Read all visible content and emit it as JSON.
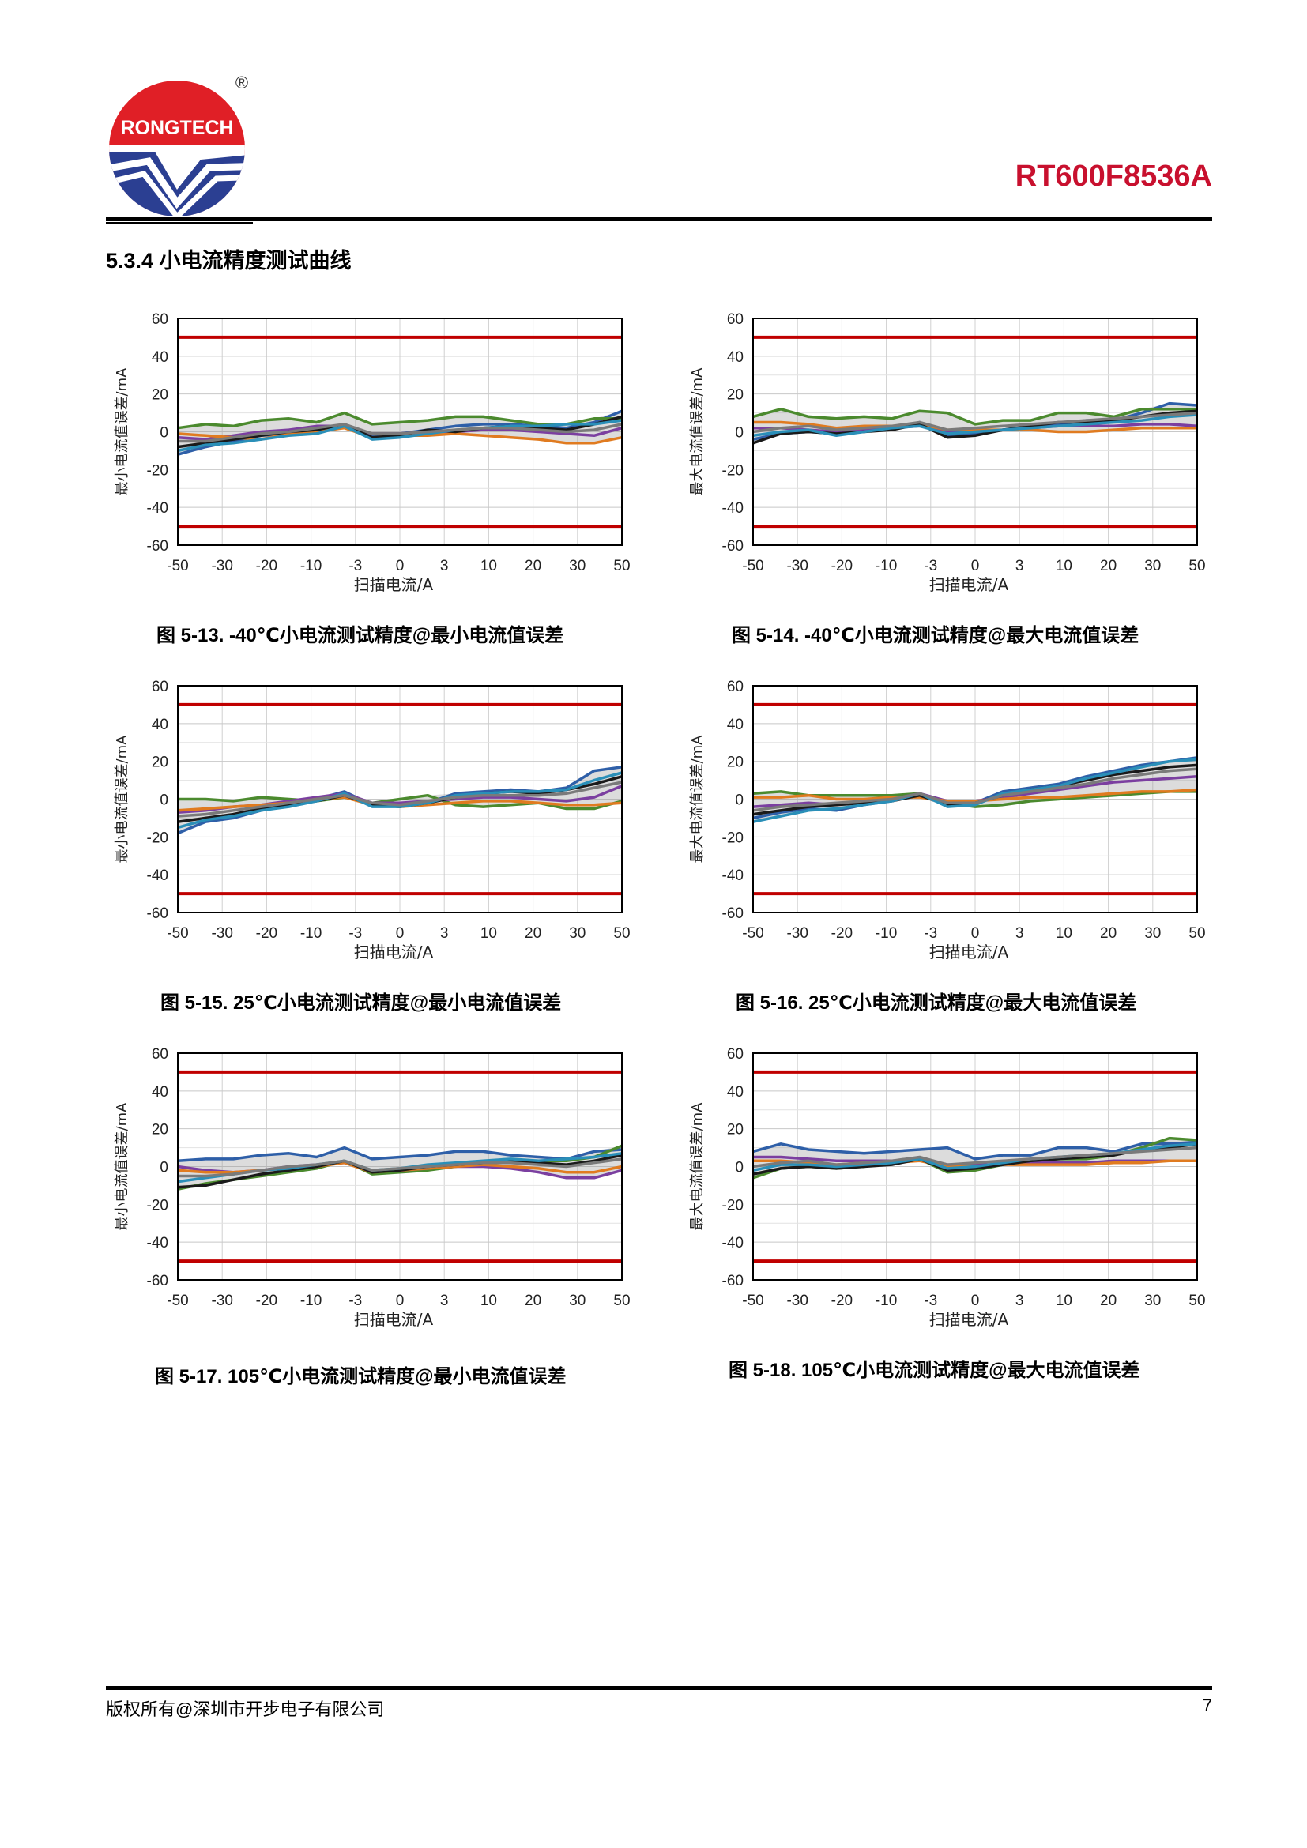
{
  "header": {
    "logo_text": "RONGTECH",
    "logo_mark": "®",
    "doc_title": "RT600F8536A"
  },
  "section": {
    "title": "5.3.4  小电流精度测试曲线"
  },
  "colors": {
    "limit": "#c00000",
    "series": [
      "#2e5fa8",
      "#4b8a2e",
      "#7b3fa0",
      "#e07b20",
      "#1a1a1a",
      "#2a8fb8",
      "#7a7a7a"
    ]
  },
  "chart_data": [
    {
      "type": "line",
      "ylabel": "最小电流值误差/mA",
      "xlabel": "扫描电流/A",
      "x_ticks": [
        "-50",
        "-30",
        "-20",
        "-10",
        "-3",
        "0",
        "3",
        "10",
        "20",
        "30",
        "50"
      ],
      "y_ticks": [
        "60",
        "40",
        "20",
        "0",
        "-20",
        "-40",
        "-60"
      ],
      "ylim": [
        -60,
        60
      ],
      "limit_lines": [
        50,
        -50
      ],
      "series": [
        {
          "values": [
            -12,
            -8,
            -5,
            -2,
            -1,
            0,
            3,
            -2,
            -1,
            1,
            3,
            4,
            4,
            3,
            2,
            5,
            11
          ]
        },
        {
          "values": [
            2,
            4,
            5,
            3,
            6,
            6,
            7,
            5,
            10,
            9,
            4,
            5,
            6,
            7,
            8,
            8,
            5,
            6,
            4,
            4,
            6,
            7,
            7
          ]
        },
        {
          "values": [
            -3,
            -4,
            -2,
            0,
            1,
            3,
            3,
            -1,
            -1,
            0,
            0,
            1,
            1,
            0,
            -1,
            -2,
            2
          ]
        },
        {
          "values": [
            -1,
            -2,
            -3,
            -4,
            -1,
            0,
            2,
            -3,
            -2,
            -2,
            -1,
            -2,
            -3,
            -4,
            -6,
            -6,
            -3
          ]
        },
        {
          "values": [
            -8,
            -6,
            -4,
            -2,
            0,
            1,
            4,
            -3,
            -2,
            1,
            0,
            2,
            3,
            2,
            1,
            4,
            8
          ]
        },
        {
          "values": [
            -10,
            -7,
            -6,
            -4,
            -2,
            -1,
            3,
            -4,
            -3,
            -1,
            1,
            2,
            3,
            3,
            4,
            4,
            6
          ]
        },
        {
          "values": [
            -5,
            -5,
            -3,
            -1,
            0,
            2,
            4,
            -1,
            -1,
            0,
            1,
            2,
            2,
            1,
            0,
            1,
            4
          ]
        }
      ]
    },
    {
      "type": "line",
      "ylabel": "最大电流值误差/mA",
      "xlabel": "扫描电流/A",
      "x_ticks": [
        "-50",
        "-30",
        "-20",
        "-10",
        "-3",
        "0",
        "3",
        "10",
        "20",
        "30",
        "50"
      ],
      "y_ticks": [
        "60",
        "40",
        "20",
        "0",
        "-20",
        "-40",
        "-60"
      ],
      "ylim": [
        -60,
        60
      ],
      "limit_lines": [
        50,
        -50
      ],
      "series": [
        {
          "values": [
            -4,
            -1,
            0,
            -1,
            0,
            2,
            5,
            -2,
            -1,
            1,
            3,
            4,
            6,
            6,
            10,
            15,
            14
          ]
        },
        {
          "values": [
            8,
            12,
            8,
            7,
            8,
            7,
            11,
            10,
            4,
            6,
            6,
            10,
            10,
            8,
            12,
            12,
            12
          ]
        },
        {
          "values": [
            2,
            2,
            1,
            0,
            1,
            2,
            3,
            0,
            0,
            1,
            2,
            3,
            3,
            3,
            4,
            4,
            3
          ]
        },
        {
          "values": [
            5,
            5,
            4,
            2,
            3,
            3,
            4,
            1,
            1,
            1,
            1,
            0,
            0,
            1,
            2,
            2,
            2
          ]
        },
        {
          "values": [
            -6,
            -1,
            0,
            -1,
            0,
            1,
            4,
            -3,
            -2,
            1,
            3,
            5,
            5,
            6,
            8,
            10,
            11
          ]
        },
        {
          "values": [
            -2,
            0,
            1,
            -2,
            0,
            2,
            3,
            -1,
            0,
            1,
            2,
            3,
            4,
            5,
            6,
            8,
            9
          ]
        },
        {
          "values": [
            0,
            2,
            3,
            1,
            2,
            3,
            5,
            1,
            2,
            3,
            4,
            5,
            6,
            7,
            8,
            9,
            10
          ]
        }
      ]
    },
    {
      "type": "line",
      "ylabel": "最小电流值误差/mA",
      "xlabel": "扫描电流/A",
      "x_ticks": [
        "-50",
        "-30",
        "-20",
        "-10",
        "-3",
        "0",
        "3",
        "10",
        "20",
        "30",
        "50"
      ],
      "y_ticks": [
        "60",
        "40",
        "20",
        "0",
        "-20",
        "-40",
        "-60"
      ],
      "ylim": [
        -60,
        60
      ],
      "limit_lines": [
        50,
        -50
      ],
      "series": [
        {
          "values": [
            -18,
            -12,
            -10,
            -6,
            -3,
            0,
            4,
            -3,
            -4,
            -2,
            3,
            4,
            5,
            4,
            6,
            15,
            17
          ]
        },
        {
          "values": [
            0,
            0,
            -1,
            1,
            0,
            -1,
            1,
            -2,
            0,
            2,
            -3,
            -4,
            -3,
            -2,
            -5,
            -5,
            -1
          ]
        },
        {
          "values": [
            -7,
            -6,
            -4,
            -3,
            -1,
            1,
            3,
            -2,
            -2,
            -1,
            0,
            1,
            1,
            0,
            -1,
            1,
            7
          ]
        },
        {
          "values": [
            -6,
            -5,
            -4,
            -3,
            -2,
            0,
            1,
            -3,
            -4,
            -3,
            -2,
            -1,
            -1,
            -2,
            -3,
            -3,
            -2
          ]
        },
        {
          "values": [
            -12,
            -10,
            -8,
            -5,
            -3,
            -1,
            2,
            -3,
            -4,
            -2,
            1,
            3,
            4,
            3,
            5,
            8,
            12
          ]
        },
        {
          "values": [
            -15,
            -11,
            -9,
            -6,
            -4,
            -1,
            3,
            -4,
            -4,
            -2,
            2,
            3,
            4,
            4,
            5,
            10,
            14
          ]
        },
        {
          "values": [
            -9,
            -8,
            -6,
            -4,
            -2,
            0,
            2,
            -2,
            -3,
            -1,
            1,
            2,
            2,
            2,
            3,
            6,
            9
          ]
        }
      ]
    },
    {
      "type": "line",
      "ylabel": "最大电流值误差/mA",
      "xlabel": "扫描电流/A",
      "x_ticks": [
        "-50",
        "-30",
        "-20",
        "-10",
        "-3",
        "0",
        "3",
        "10",
        "20",
        "30",
        "50"
      ],
      "y_ticks": [
        "60",
        "40",
        "20",
        "0",
        "-20",
        "-40",
        "-60"
      ],
      "ylim": [
        -60,
        60
      ],
      "limit_lines": [
        50,
        -50
      ],
      "series": [
        {
          "values": [
            -10,
            -7,
            -5,
            -6,
            -3,
            -1,
            3,
            -3,
            -2,
            4,
            6,
            8,
            12,
            15,
            18,
            20,
            22
          ]
        },
        {
          "values": [
            3,
            4,
            2,
            2,
            2,
            2,
            3,
            -2,
            -4,
            -3,
            -1,
            0,
            1,
            2,
            3,
            4,
            4
          ]
        },
        {
          "values": [
            -4,
            -3,
            -2,
            -3,
            -1,
            0,
            3,
            -1,
            -1,
            1,
            3,
            5,
            7,
            9,
            10,
            11,
            12
          ]
        },
        {
          "values": [
            1,
            1,
            2,
            0,
            0,
            1,
            1,
            -1,
            -1,
            0,
            1,
            1,
            2,
            3,
            4,
            4,
            5
          ]
        },
        {
          "values": [
            -8,
            -6,
            -4,
            -3,
            -2,
            -1,
            2,
            -3,
            -2,
            2,
            5,
            7,
            10,
            13,
            15,
            17,
            18
          ]
        },
        {
          "values": [
            -12,
            -9,
            -6,
            -5,
            -3,
            -1,
            3,
            -4,
            -3,
            3,
            5,
            7,
            11,
            14,
            17,
            20,
            21
          ]
        },
        {
          "values": [
            -6,
            -4,
            -3,
            -2,
            -1,
            0,
            3,
            -2,
            -2,
            2,
            4,
            6,
            8,
            11,
            13,
            15,
            16
          ]
        }
      ]
    },
    {
      "type": "line",
      "ylabel": "最小电流值误差/mA",
      "xlabel": "扫描电流/A",
      "x_ticks": [
        "-50",
        "-30",
        "-20",
        "-10",
        "-3",
        "0",
        "3",
        "10",
        "20",
        "30",
        "50"
      ],
      "y_ticks": [
        "60",
        "40",
        "20",
        "0",
        "-20",
        "-40",
        "-60"
      ],
      "ylim": [
        -60,
        60
      ],
      "limit_lines": [
        50,
        -50
      ],
      "series": [
        {
          "values": [
            3,
            4,
            5,
            4,
            6,
            6,
            7,
            5,
            10,
            9,
            4,
            5,
            6,
            7,
            8,
            8,
            5,
            6,
            5,
            4,
            6,
            8,
            9
          ]
        },
        {
          "values": [
            -12,
            -9,
            -7,
            -5,
            -3,
            -1,
            3,
            -4,
            -3,
            -2,
            0,
            2,
            3,
            3,
            3,
            5,
            11
          ]
        },
        {
          "values": [
            0,
            -2,
            -3,
            -2,
            0,
            1,
            2,
            -2,
            -2,
            -1,
            0,
            0,
            -1,
            -3,
            -6,
            -6,
            -2
          ]
        },
        {
          "values": [
            -2,
            -3,
            -3,
            -2,
            -1,
            0,
            2,
            -3,
            -2,
            -1,
            0,
            1,
            0,
            -1,
            -3,
            -3,
            0
          ]
        },
        {
          "values": [
            -11,
            -10,
            -7,
            -4,
            -2,
            0,
            3,
            -3,
            -2,
            0,
            1,
            2,
            3,
            2,
            1,
            3,
            6
          ]
        },
        {
          "values": [
            -8,
            -6,
            -4,
            -2,
            -1,
            1,
            3,
            -2,
            -1,
            1,
            2,
            3,
            4,
            3,
            4,
            5,
            7
          ]
        },
        {
          "values": [
            -5,
            -5,
            -4,
            -2,
            0,
            1,
            3,
            -2,
            -1,
            0,
            1,
            2,
            2,
            1,
            0,
            2,
            4
          ]
        }
      ]
    },
    {
      "type": "line",
      "ylabel": "最大电流值误差/mA",
      "xlabel": "扫描电流/A",
      "x_ticks": [
        "-50",
        "-30",
        "-20",
        "-10",
        "-3",
        "0",
        "3",
        "10",
        "20",
        "30",
        "50"
      ],
      "y_ticks": [
        "60",
        "40",
        "20",
        "0",
        "-20",
        "-40",
        "-60"
      ],
      "ylim": [
        -60,
        60
      ],
      "limit_lines": [
        50,
        -50
      ],
      "series": [
        {
          "values": [
            8,
            12,
            9,
            8,
            7,
            8,
            9,
            10,
            4,
            6,
            6,
            10,
            10,
            8,
            12,
            12,
            13
          ]
        },
        {
          "values": [
            -6,
            -1,
            0,
            -1,
            0,
            2,
            4,
            -3,
            -2,
            1,
            3,
            4,
            4,
            6,
            10,
            15,
            14
          ]
        },
        {
          "values": [
            5,
            5,
            4,
            3,
            3,
            3,
            4,
            1,
            1,
            1,
            2,
            2,
            2,
            3,
            3,
            3,
            3
          ]
        },
        {
          "values": [
            3,
            3,
            2,
            1,
            2,
            2,
            3,
            0,
            0,
            1,
            1,
            1,
            1,
            2,
            2,
            3,
            3
          ]
        },
        {
          "values": [
            -4,
            -1,
            0,
            -1,
            0,
            1,
            4,
            -2,
            -1,
            1,
            3,
            4,
            5,
            6,
            9,
            10,
            12
          ]
        },
        {
          "values": [
            -2,
            1,
            1,
            0,
            1,
            2,
            4,
            -1,
            0,
            2,
            4,
            5,
            6,
            7,
            9,
            11,
            12
          ]
        },
        {
          "values": [
            0,
            2,
            3,
            1,
            2,
            3,
            5,
            1,
            2,
            3,
            4,
            5,
            6,
            7,
            8,
            9,
            10
          ]
        }
      ]
    }
  ],
  "captions": [
    "图 5-13. -40℃小电流测试精度@最小电流值误差",
    "图 5-14. -40℃小电流测试精度@最大电流值误差",
    "图 5-15. 25℃小电流测试精度@最小电流值误差",
    "图 5-16. 25℃小电流测试精度@最大电流值误差",
    "图 5-17. 105℃小电流测试精度@最小电流值误差",
    "图 5-18. 105℃小电流测试精度@最大电流值误差"
  ],
  "footer": {
    "copyright": "版权所有@深圳市开步电子有限公司",
    "page_number": "7"
  }
}
